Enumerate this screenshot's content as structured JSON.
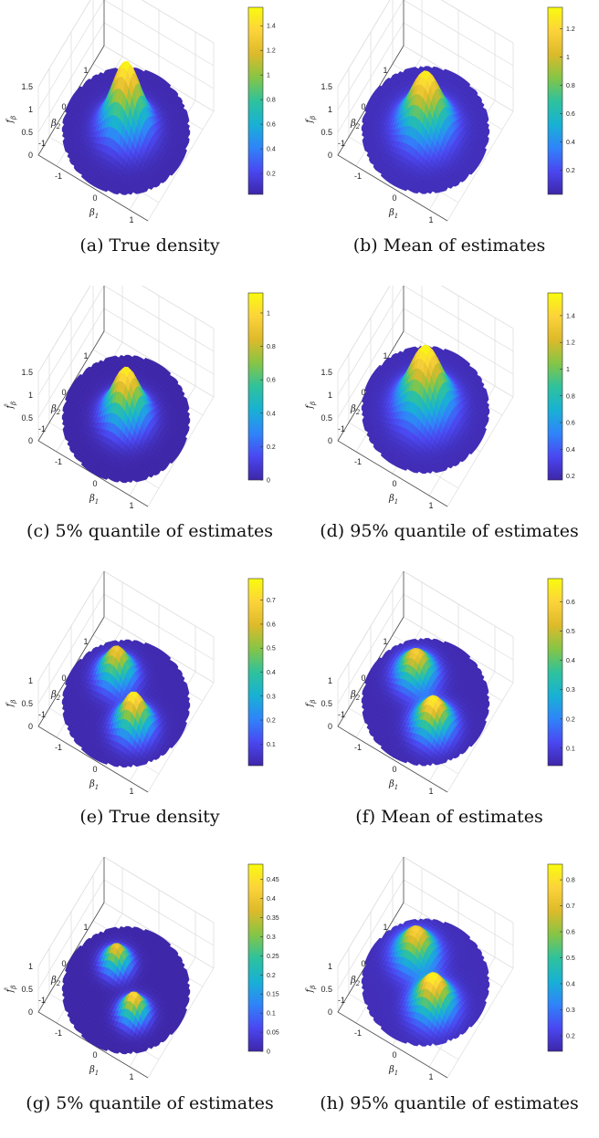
{
  "figure": {
    "colormap": [
      "#3e26a8",
      "#4a47f1",
      "#2f84f9",
      "#18b1d4",
      "#2fc29c",
      "#86c545",
      "#ddba2a",
      "#fcd33a",
      "#f9fb0e"
    ]
  },
  "chart_data": [
    {
      "type": "surface3d",
      "caption": "(a) True density",
      "zlabel": "f_β",
      "xlabel": "β_1",
      "ylabel": "β_2",
      "zticks": [
        "0",
        "0.5",
        "1",
        "1.5"
      ],
      "xticks": [
        "-1",
        "0",
        "1"
      ],
      "yticks": [
        "1",
        "0",
        "-1"
      ],
      "zlim": [
        0,
        1.5
      ],
      "colorbar_ticks": [
        "1.4",
        "1.2",
        "1",
        "0.8",
        "0.6",
        "0.4",
        "0.2"
      ],
      "colorbar_range": [
        0.03,
        1.55
      ],
      "peaks": [
        {
          "x": 0,
          "y": 0,
          "height": 1.55,
          "width": 0.35
        }
      ],
      "base": 0.05,
      "support": "disc"
    },
    {
      "type": "surface3d",
      "caption": "(b) Mean of estimates",
      "zlabel": "f_β",
      "xlabel": "β_1",
      "ylabel": "β_2",
      "zticks": [
        "0",
        "0.5",
        "1",
        "1.5"
      ],
      "xticks": [
        "-1",
        "0",
        "1"
      ],
      "yticks": [
        "1",
        "0",
        "-1"
      ],
      "zlim": [
        0,
        1.5
      ],
      "colorbar_ticks": [
        "1.2",
        "1",
        "0.8",
        "0.6",
        "0.4",
        "0.2"
      ],
      "colorbar_range": [
        0.03,
        1.35
      ],
      "peaks": [
        {
          "x": 0,
          "y": 0,
          "height": 1.32,
          "width": 0.38
        }
      ],
      "base": 0.07,
      "support": "disc"
    },
    {
      "type": "surface3d",
      "caption": "(c) 5% quantile of estimates",
      "zlabel": "f̂_β",
      "xlabel": "β_1",
      "ylabel": "β_2",
      "zticks": [
        "0",
        "0.5",
        "1",
        "1.5"
      ],
      "xticks": [
        "-1",
        "0",
        "1"
      ],
      "yticks": [
        "1",
        "0",
        "-1"
      ],
      "zlim": [
        0,
        1.5
      ],
      "colorbar_ticks": [
        "1",
        "0.8",
        "0.6",
        "0.4",
        "0.2",
        "0"
      ],
      "colorbar_range": [
        0,
        1.12
      ],
      "peaks": [
        {
          "x": 0,
          "y": 0,
          "height": 1.1,
          "width": 0.33
        }
      ],
      "base": 0.0,
      "support": "disc"
    },
    {
      "type": "surface3d",
      "caption": "(d) 95% quantile of estimates",
      "zlabel": "f_β",
      "xlabel": "β_1",
      "ylabel": "β_2",
      "zticks": [
        "0",
        "0.5",
        "1",
        "1.5"
      ],
      "xticks": [
        "-1",
        "0",
        "1"
      ],
      "yticks": [
        "1",
        "0",
        "-1"
      ],
      "zlim": [
        0,
        1.5
      ],
      "colorbar_ticks": [
        "1.4",
        "1.2",
        "1",
        "0.8",
        "0.6",
        "0.4",
        "0.2"
      ],
      "colorbar_range": [
        0.17,
        1.57
      ],
      "peaks": [
        {
          "x": 0,
          "y": 0,
          "height": 1.57,
          "width": 0.4
        }
      ],
      "base": 0.2,
      "support": "disc"
    },
    {
      "type": "surface3d",
      "caption": "(e) True density",
      "zlabel": "f_β",
      "xlabel": "β_1",
      "ylabel": "β_2",
      "zticks": [
        "0",
        "0.5",
        "1"
      ],
      "xticks": [
        "-1",
        "0",
        "1"
      ],
      "yticks": [
        "1",
        "0",
        "-1"
      ],
      "zlim": [
        0,
        1
      ],
      "colorbar_ticks": [
        "0.7",
        "0.6",
        "0.5",
        "0.4",
        "0.3",
        "0.2",
        "0.1"
      ],
      "colorbar_range": [
        0.01,
        0.79
      ],
      "peaks": [
        {
          "x": -0.5,
          "y": 0.4,
          "height": 0.68,
          "width": 0.28
        },
        {
          "x": 0.45,
          "y": -0.4,
          "height": 0.78,
          "width": 0.28
        }
      ],
      "base": 0.02,
      "support": "disc"
    },
    {
      "type": "surface3d",
      "caption": "(f) Mean of estimates",
      "zlabel": "f_β",
      "xlabel": "β_1",
      "ylabel": "β_2",
      "zticks": [
        "0",
        "0.5",
        "1"
      ],
      "xticks": [
        "-1",
        "0",
        "1"
      ],
      "yticks": [
        "1",
        "0",
        "-1"
      ],
      "zlim": [
        0,
        1
      ],
      "colorbar_ticks": [
        "0.6",
        "0.5",
        "0.4",
        "0.3",
        "0.2",
        "0.1"
      ],
      "colorbar_range": [
        0.04,
        0.68
      ],
      "peaks": [
        {
          "x": -0.5,
          "y": 0.4,
          "height": 0.6,
          "width": 0.3
        },
        {
          "x": 0.45,
          "y": -0.4,
          "height": 0.67,
          "width": 0.3
        }
      ],
      "base": 0.05,
      "support": "disc"
    },
    {
      "type": "surface3d",
      "caption": "(g) 5% quantile of estimates",
      "zlabel": "f̂_β",
      "xlabel": "β_1",
      "ylabel": "β_2",
      "zticks": [
        "0",
        "0.5",
        "1"
      ],
      "xticks": [
        "-1",
        "0",
        "1"
      ],
      "yticks": [
        "1",
        "0",
        "-1"
      ],
      "zlim": [
        0,
        1
      ],
      "colorbar_ticks": [
        "0.45",
        "0.4",
        "0.35",
        "0.3",
        "0.25",
        "0.2",
        "0.15",
        "0.1",
        "0.05",
        "0"
      ],
      "colorbar_range": [
        0,
        0.49
      ],
      "peaks": [
        {
          "x": -0.5,
          "y": 0.4,
          "height": 0.42,
          "width": 0.22
        },
        {
          "x": 0.45,
          "y": -0.4,
          "height": 0.46,
          "width": 0.22
        }
      ],
      "base": 0.0,
      "support": "disc"
    },
    {
      "type": "surface3d",
      "caption": "(h) 95% quantile of estimates",
      "zlabel": "f_β",
      "xlabel": "β_1",
      "ylabel": "β_2",
      "zticks": [
        "0",
        "0.5",
        "1"
      ],
      "xticks": [
        "-1",
        "0",
        "1"
      ],
      "yticks": [
        "1",
        "0",
        "-1"
      ],
      "zlim": [
        0,
        1
      ],
      "colorbar_ticks": [
        "0.8",
        "0.7",
        "0.6",
        "0.5",
        "0.4",
        "0.3",
        "0.2"
      ],
      "colorbar_range": [
        0.14,
        0.86
      ],
      "peaks": [
        {
          "x": -0.5,
          "y": 0.4,
          "height": 0.78,
          "width": 0.32
        },
        {
          "x": 0.45,
          "y": -0.4,
          "height": 0.86,
          "width": 0.32
        }
      ],
      "base": 0.16,
      "support": "disc"
    }
  ]
}
